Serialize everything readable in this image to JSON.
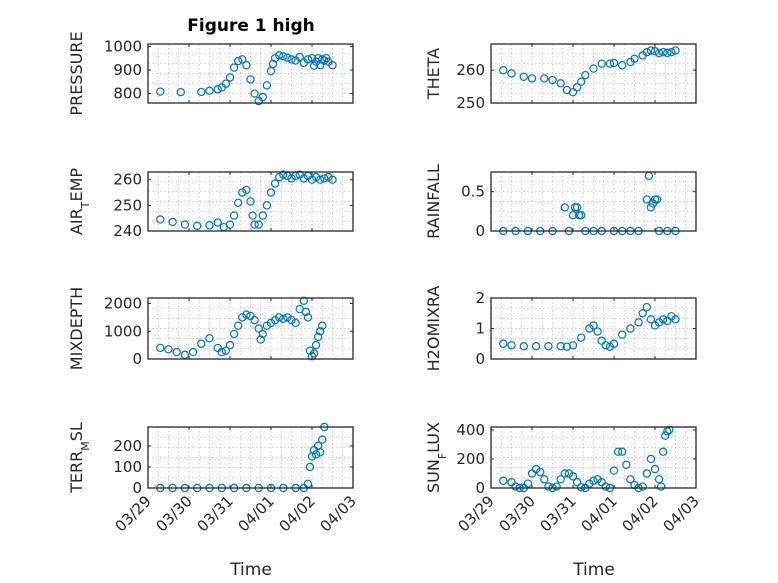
{
  "figure": {
    "title": "Figure 1 high",
    "x_tick_labels": [
      "03/29",
      "03/30",
      "03/31",
      "04/01",
      "04/02",
      "04/03"
    ],
    "xlabel": "Time",
    "marker_color": "#0072BD"
  },
  "chart_data": [
    {
      "type": "scatter",
      "ylabel": "PRESSURE",
      "ylim": [
        760,
        1010
      ],
      "yticks": [
        800,
        900,
        1000
      ],
      "x": [
        0.3,
        0.8,
        1.3,
        1.5,
        1.7,
        1.8,
        1.9,
        2.0,
        2.1,
        2.2,
        2.3,
        2.4,
        2.5,
        2.6,
        2.7,
        2.8,
        2.9,
        3.0,
        3.05,
        3.1,
        3.2,
        3.3,
        3.4,
        3.5,
        3.6,
        3.7,
        3.8,
        3.9,
        4.0,
        4.05,
        4.1,
        4.15,
        4.2,
        4.25,
        4.3,
        4.35,
        4.4,
        4.5
      ],
      "y": [
        808,
        806,
        807,
        812,
        818,
        826,
        842,
        868,
        910,
        938,
        945,
        920,
        860,
        800,
        768,
        785,
        835,
        895,
        925,
        950,
        962,
        958,
        952,
        945,
        940,
        955,
        930,
        945,
        950,
        918,
        935,
        950,
        920,
        945,
        940,
        950,
        935,
        920
      ]
    },
    {
      "type": "scatter",
      "ylabel": "THETA",
      "ylim": [
        250,
        268
      ],
      "yticks": [
        250,
        260
      ],
      "x": [
        0.3,
        0.5,
        0.8,
        1.0,
        1.3,
        1.5,
        1.7,
        1.85,
        2.0,
        2.1,
        2.2,
        2.3,
        2.5,
        2.7,
        2.9,
        3.0,
        3.2,
        3.4,
        3.5,
        3.7,
        3.8,
        3.9,
        4.0,
        4.1,
        4.2,
        4.3,
        4.4,
        4.5
      ],
      "y": [
        260,
        259,
        258,
        257.5,
        257.5,
        257,
        256,
        254,
        253.3,
        254.8,
        256.5,
        258.5,
        260.5,
        262,
        262,
        262.2,
        261.5,
        262.5,
        263.5,
        264.5,
        265.5,
        266,
        265.8,
        265.2,
        265.5,
        265.3,
        265.5,
        266
      ]
    },
    {
      "type": "scatter",
      "ylabel": "AIR_TEMP",
      "ylim": [
        240,
        263
      ],
      "yticks": [
        240,
        250,
        260
      ],
      "x": [
        0.3,
        0.6,
        0.9,
        1.2,
        1.5,
        1.7,
        1.85,
        2.0,
        2.1,
        2.2,
        2.3,
        2.4,
        2.5,
        2.55,
        2.6,
        2.7,
        2.8,
        2.9,
        3.0,
        3.1,
        3.2,
        3.3,
        3.4,
        3.5,
        3.6,
        3.7,
        3.8,
        3.9,
        4.0,
        4.1,
        4.2,
        4.3,
        4.4,
        4.5
      ],
      "y": [
        244.5,
        243.5,
        242.5,
        242,
        242.2,
        243.3,
        241.5,
        242.5,
        246,
        251,
        255,
        256,
        251.5,
        246,
        242.5,
        242.5,
        246,
        250,
        255,
        258.5,
        261,
        262,
        261.5,
        260.5,
        261.5,
        262,
        260.5,
        261.5,
        260,
        261,
        260,
        260.5,
        261,
        260
      ]
    },
    {
      "type": "scatter",
      "ylabel": "RAINFALL",
      "ylim": [
        0,
        0.75
      ],
      "yticks": [
        0,
        0.5
      ],
      "x": [
        0.3,
        0.6,
        0.9,
        1.2,
        1.5,
        1.8,
        1.9,
        2.0,
        2.05,
        2.1,
        2.15,
        2.2,
        2.3,
        2.5,
        2.7,
        3.0,
        3.2,
        3.4,
        3.6,
        3.8,
        3.85,
        3.9,
        3.95,
        4.0,
        4.05,
        4.1,
        4.3,
        4.5
      ],
      "y": [
        0,
        0,
        0,
        0,
        0,
        0.3,
        0,
        0.2,
        0.3,
        0.3,
        0.2,
        0.2,
        0,
        0,
        0,
        0,
        0,
        0,
        0,
        0.4,
        0.7,
        0.3,
        0.35,
        0.4,
        0.4,
        0,
        0,
        0
      ]
    },
    {
      "type": "scatter",
      "ylabel": "MIXDEPTH",
      "ylim": [
        0,
        2200
      ],
      "yticks": [
        0,
        1000,
        2000
      ],
      "x": [
        0.3,
        0.5,
        0.7,
        0.9,
        1.1,
        1.3,
        1.5,
        1.7,
        1.8,
        1.9,
        2.0,
        2.1,
        2.2,
        2.3,
        2.4,
        2.5,
        2.6,
        2.7,
        2.75,
        2.8,
        2.9,
        3.0,
        3.1,
        3.2,
        3.3,
        3.4,
        3.5,
        3.6,
        3.7,
        3.8,
        3.85,
        3.9,
        3.95,
        4.0,
        4.05,
        4.1,
        4.15,
        4.2,
        4.25
      ],
      "y": [
        400,
        350,
        250,
        150,
        250,
        550,
        750,
        400,
        250,
        300,
        500,
        900,
        1200,
        1500,
        1600,
        1550,
        1400,
        1100,
        700,
        900,
        1200,
        1300,
        1400,
        1500,
        1450,
        1500,
        1400,
        1300,
        1800,
        2100,
        1700,
        1500,
        300,
        100,
        200,
        500,
        800,
        1000,
        1200
      ]
    },
    {
      "type": "scatter",
      "ylabel": "H2OMIXRA",
      "ylim": [
        0,
        2
      ],
      "yticks": [
        0,
        1,
        2
      ],
      "x": [
        0.3,
        0.5,
        0.8,
        1.1,
        1.4,
        1.7,
        1.85,
        2.0,
        2.2,
        2.4,
        2.5,
        2.6,
        2.7,
        2.8,
        2.9,
        3.0,
        3.2,
        3.4,
        3.6,
        3.7,
        3.8,
        3.9,
        4.0,
        4.1,
        4.2,
        4.3,
        4.4,
        4.5
      ],
      "y": [
        0.5,
        0.45,
        0.42,
        0.42,
        0.42,
        0.42,
        0.4,
        0.45,
        0.7,
        1.0,
        1.1,
        0.9,
        0.6,
        0.45,
        0.4,
        0.5,
        0.8,
        1.0,
        1.2,
        1.5,
        1.7,
        1.3,
        1.1,
        1.2,
        1.3,
        1.25,
        1.4,
        1.3
      ]
    },
    {
      "type": "scatter",
      "ylabel": "TERR_MSL",
      "ylim": [
        0,
        290
      ],
      "yticks": [
        0,
        100,
        200
      ],
      "x": [
        0.3,
        0.6,
        0.9,
        1.2,
        1.5,
        1.8,
        2.1,
        2.4,
        2.7,
        3.0,
        3.3,
        3.6,
        3.8,
        3.9,
        3.95,
        4.0,
        4.05,
        4.1,
        4.15,
        4.2,
        4.25,
        4.3
      ],
      "y": [
        0,
        0,
        0,
        0,
        0,
        0,
        0,
        0,
        0,
        0,
        0,
        0,
        0,
        20,
        100,
        150,
        180,
        160,
        200,
        170,
        230,
        290
      ]
    },
    {
      "type": "scatter",
      "ylabel": "SUN_FLUX",
      "ylim": [
        0,
        420
      ],
      "yticks": [
        0,
        200,
        400
      ],
      "x": [
        0.3,
        0.5,
        0.6,
        0.7,
        0.8,
        0.9,
        1.0,
        1.1,
        1.2,
        1.3,
        1.4,
        1.5,
        1.6,
        1.7,
        1.8,
        1.9,
        2.0,
        2.1,
        2.2,
        2.3,
        2.4,
        2.5,
        2.6,
        2.7,
        2.8,
        2.9,
        3.0,
        3.1,
        3.2,
        3.3,
        3.4,
        3.5,
        3.6,
        3.7,
        3.8,
        3.9,
        4.0,
        4.1,
        4.15,
        4.2,
        4.25,
        4.3,
        4.35
      ],
      "y": [
        50,
        40,
        10,
        0,
        0,
        30,
        100,
        130,
        110,
        60,
        10,
        0,
        10,
        60,
        100,
        100,
        80,
        40,
        5,
        0,
        30,
        50,
        60,
        40,
        10,
        0,
        120,
        250,
        250,
        160,
        60,
        20,
        0,
        10,
        100,
        200,
        130,
        60,
        10,
        250,
        360,
        390,
        400
      ]
    }
  ]
}
